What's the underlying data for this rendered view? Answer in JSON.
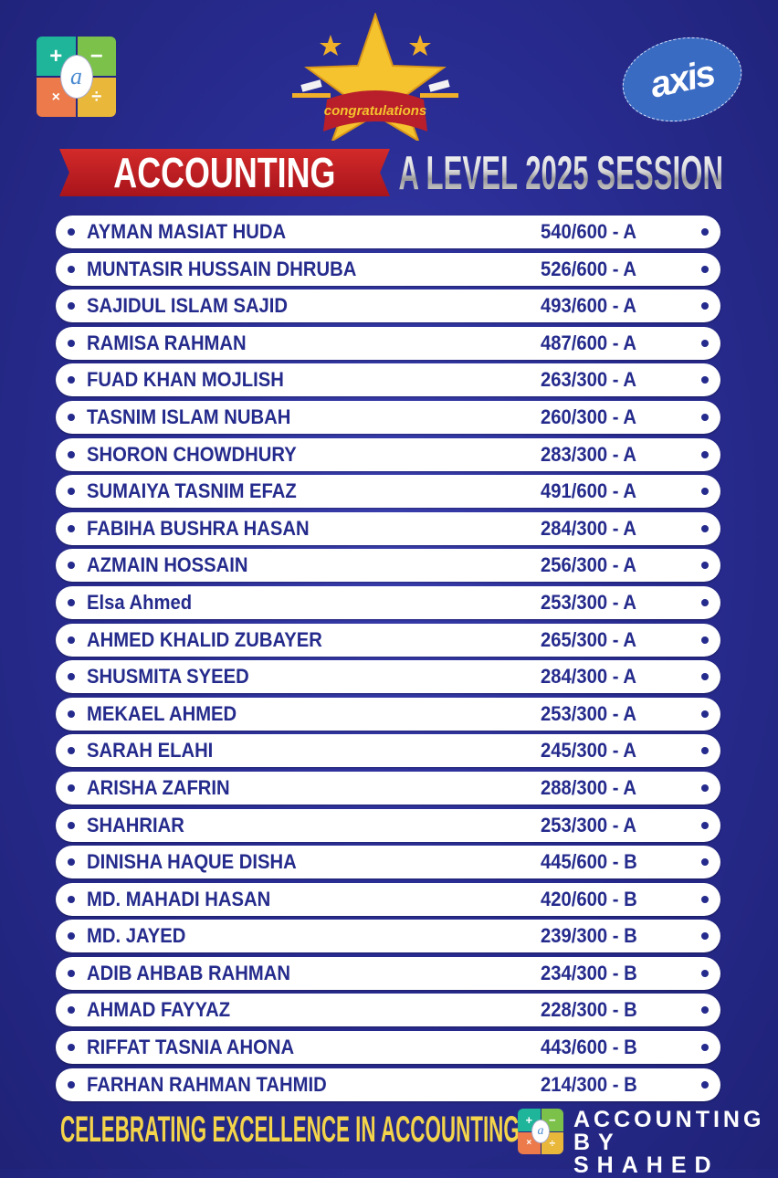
{
  "header": {
    "left_logo": {
      "icon": "calculator-logo",
      "symbols": [
        "+",
        "−",
        "×",
        "÷"
      ],
      "center": "a"
    },
    "center_badge": {
      "icon": "star-congratulations-badge",
      "text": "congratulations"
    },
    "right_logo": {
      "text": "axis"
    },
    "subject": "ACCOUNTING",
    "session": "A LEVEL 2025 SESSION"
  },
  "results": [
    {
      "name": "AYMAN MASIAT HUDA",
      "score": "540/600 - A"
    },
    {
      "name": "MUNTASIR HUSSAIN DHRUBA",
      "score": "526/600 - A"
    },
    {
      "name": "SAJIDUL ISLAM SAJID",
      "score": "493/600 - A"
    },
    {
      "name": "RAMISA RAHMAN",
      "score": "487/600 - A"
    },
    {
      "name": "FUAD KHAN MOJLISH",
      "score": "263/300 - A"
    },
    {
      "name": "TASNIM ISLAM NUBAH",
      "score": "260/300 - A"
    },
    {
      "name": "SHORON CHOWDHURY",
      "score": "283/300 - A"
    },
    {
      "name": "SUMAIYA TASNIM EFAZ",
      "score": "491/600 - A"
    },
    {
      "name": "FABIHA BUSHRA HASAN",
      "score": "284/300 - A"
    },
    {
      "name": "AZMAIN HOSSAIN",
      "score": "256/300 - A"
    },
    {
      "name": "Elsa Ahmed",
      "score": "253/300 - A"
    },
    {
      "name": "AHMED KHALID ZUBAYER",
      "score": "265/300 - A"
    },
    {
      "name": "SHUSMITA SYEED",
      "score": "284/300 - A"
    },
    {
      "name": "MEKAEL AHMED",
      "score": "253/300 - A"
    },
    {
      "name": "SARAH ELAHI",
      "score": "245/300 - A"
    },
    {
      "name": "ARISHA ZAFRIN",
      "score": "288/300 - A"
    },
    {
      "name": "SHAHRIAR",
      "score": "253/300 - A"
    },
    {
      "name": "DINISHA HAQUE DISHA",
      "score": "445/600 - B"
    },
    {
      "name": "MD. MAHADI HASAN",
      "score": "420/600 - B"
    },
    {
      "name": "MD. JAYED",
      "score": "239/300 - B"
    },
    {
      "name": "ADIB AHBAB RAHMAN",
      "score": "234/300 - B"
    },
    {
      "name": "AHMAD FAYYAZ",
      "score": "228/300 - B"
    },
    {
      "name": "RIFFAT TASNIA AHONA",
      "score": "443/600 - B"
    },
    {
      "name": "FARHAN RAHMAN TAHMID",
      "score": "214/300 - B"
    }
  ],
  "footer": {
    "tagline": "CELEBRATING EXCELLENCE IN ACCOUNTING",
    "brand_line1": "ACCOUNTING",
    "brand_line2": "BY SHAHED"
  },
  "colors": {
    "background": "#2a2d94",
    "text_blue": "#252b8c",
    "banner_red": "#c41f24",
    "tagline_yellow": "#f3d44a"
  }
}
